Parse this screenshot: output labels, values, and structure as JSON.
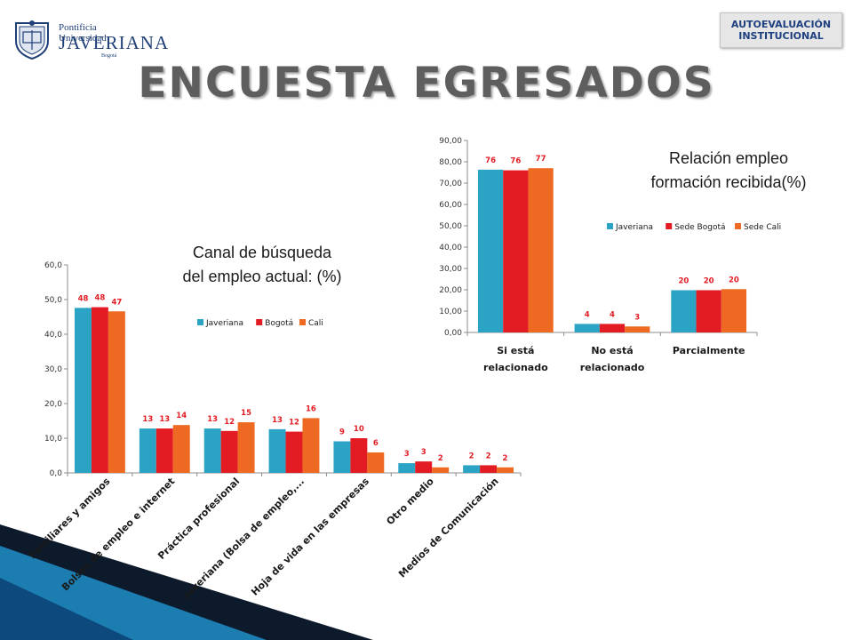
{
  "header": {
    "logo": {
      "line1": "Pontificia Universidad",
      "line2": "JAVERIANA",
      "line3": "Bogotá"
    },
    "badge": {
      "line1": "AUTOEVALUACIÓN",
      "line2": "INSTITUCIONAL"
    },
    "title": "ENCUESTA EGRESADOS"
  },
  "colors": {
    "series1": "#2aa3c4",
    "series2": "#e31b23",
    "series3": "#ee6a22",
    "datalabel": "#e31b23",
    "title": "#5e5e5e",
    "deco_dark": "#0d1a2c",
    "deco_blue": "#1e88c0"
  },
  "chart_data": [
    {
      "type": "bar",
      "title": "Canal de búsqueda del empleo actual: (%)",
      "title_lines": [
        "Canal de búsqueda",
        "del empleo actual: (%)"
      ],
      "categories": [
        "Familiares y amigos",
        "Bolsas de empleo e internet",
        "Práctica profesional",
        "Javeriana (Bolsa de empleo,...",
        "Hoja de vida en las empresas",
        "Otro medio",
        "Medios de Comunicación"
      ],
      "series": [
        {
          "name": "Javeriana",
          "color": "#2aa3c4",
          "values": [
            47.6,
            12.8,
            12.8,
            12.6,
            9.1,
            2.8,
            2.2
          ],
          "labels": [
            "48",
            "13",
            "13",
            "13",
            "9",
            "3",
            "2"
          ]
        },
        {
          "name": "Bogotá",
          "color": "#e31b23",
          "values": [
            47.8,
            12.8,
            12.1,
            11.9,
            10.0,
            3.3,
            2.2
          ],
          "labels": [
            "48",
            "13",
            "12",
            "12",
            "10",
            "3",
            "2"
          ]
        },
        {
          "name": "Cali",
          "color": "#ee6a22",
          "values": [
            46.6,
            13.8,
            14.6,
            15.8,
            5.9,
            1.6,
            1.6
          ],
          "labels": [
            "47",
            "14",
            "15",
            "16",
            "6",
            "2",
            "2"
          ]
        }
      ],
      "yticks": [
        "0,0",
        "10,0",
        "20,0",
        "30,0",
        "40,0",
        "50,0",
        "60,0"
      ],
      "ylim": [
        0,
        60
      ],
      "legend": "inside-top-right",
      "grid": false
    },
    {
      "type": "bar",
      "title": "Relación empleo formación recibida(%)",
      "title_lines": [
        "Relación empleo",
        "formación recibida(%)"
      ],
      "categories": [
        "Si está relacionado",
        "No está relacionado",
        "Parcialmente"
      ],
      "category_lines": [
        [
          "Si está",
          "relacionado"
        ],
        [
          "No está",
          "relacionado"
        ],
        [
          "Parcialmente"
        ]
      ],
      "series": [
        {
          "name": "Javeriana",
          "color": "#2aa3c4",
          "values": [
            76.3,
            4.0,
            19.8
          ],
          "labels": [
            "76",
            "4",
            "20"
          ]
        },
        {
          "name": "Sede Bogotá",
          "color": "#e31b23",
          "values": [
            76.0,
            4.0,
            19.8
          ],
          "labels": [
            "76",
            "4",
            "20"
          ]
        },
        {
          "name": "Sede Cali",
          "color": "#ee6a22",
          "values": [
            77.0,
            2.8,
            20.3
          ],
          "labels": [
            "77",
            "3",
            "20"
          ]
        }
      ],
      "yticks": [
        "0,00",
        "10,00",
        "20,00",
        "30,00",
        "40,00",
        "50,00",
        "60,00",
        "70,00",
        "80,00",
        "90,00"
      ],
      "ylim": [
        0,
        90
      ],
      "legend": "inside-right",
      "grid": false
    }
  ]
}
